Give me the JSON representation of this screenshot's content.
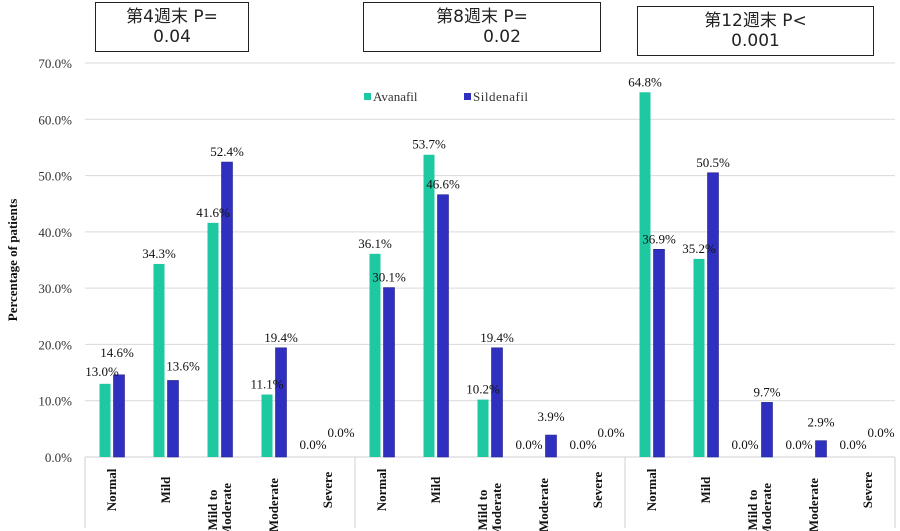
{
  "pvalue_boxes": [
    {
      "line1": "第4週末 P=",
      "line2": "0.04"
    },
    {
      "line1": "第8週末 P=",
      "line2": "0.02"
    },
    {
      "line1": "第12週末 P<",
      "line2": "0.001"
    }
  ],
  "chart_data": {
    "type": "bar",
    "title": "",
    "xlabel": "",
    "ylabel": "Percentage of patients",
    "ylim": [
      0,
      70
    ],
    "yticks": [
      0,
      10,
      20,
      30,
      40,
      50,
      60,
      70
    ],
    "ytick_labels": [
      "0.0%",
      "10.0%",
      "20.0%",
      "30.0%",
      "40.0%",
      "50.0%",
      "60.0%",
      "70.0%"
    ],
    "grid": true,
    "legend_position": "top-center",
    "colors": {
      "Avanafil": "#1ec8a0",
      "Sildenafil": "#3030c0"
    },
    "groups": [
      {
        "name": "Week 4",
        "categories": [
          "Normal",
          "Mild",
          "Mild to Moderate",
          "Moderate",
          "Severe"
        ],
        "series": [
          {
            "name": "Avanafil",
            "values": [
              13.0,
              34.3,
              41.6,
              11.1,
              0.0
            ],
            "labels": [
              "13.0%",
              "34.3%",
              "41.6%",
              "11.1%",
              "0.0%"
            ]
          },
          {
            "name": "Sildenafil",
            "values": [
              14.6,
              13.6,
              52.4,
              19.4,
              0.0
            ],
            "labels": [
              "14.6%",
              "13.6%",
              "52.4%",
              "19.4%",
              "0.0%"
            ]
          }
        ]
      },
      {
        "name": "Week 8",
        "categories": [
          "Normal",
          "Mild",
          "Mild to Moderate",
          "Moderate",
          "Severe"
        ],
        "series": [
          {
            "name": "Avanafil",
            "values": [
              36.1,
              53.7,
              10.2,
              0.0,
              0.0
            ],
            "labels": [
              "36.1%",
              "53.7%",
              "10.2%",
              "0.0%",
              "0.0%"
            ]
          },
          {
            "name": "Sildenafil",
            "values": [
              30.1,
              46.6,
              19.4,
              3.9,
              0.0
            ],
            "labels": [
              "30.1%",
              "46.6%",
              "19.4%",
              "3.9%",
              "0.0%"
            ]
          }
        ]
      },
      {
        "name": "Week 12",
        "categories": [
          "Normal",
          "Mild",
          "Mild to Moderate",
          "Moderate",
          "Severe"
        ],
        "series": [
          {
            "name": "Avanafil",
            "values": [
              64.8,
              35.2,
              0.0,
              0.0,
              0.0
            ],
            "labels": [
              "64.8%",
              "35.2%",
              "0.0%",
              "0.0%",
              "0.0%"
            ]
          },
          {
            "name": "Sildenafil",
            "values": [
              36.9,
              50.5,
              9.7,
              2.9,
              0.0
            ],
            "labels": [
              "36.9%",
              "50.5%",
              "9.7%",
              "2.9%",
              "0.0%"
            ]
          }
        ]
      }
    ],
    "legend": [
      "Avanafil",
      "Sildenafil"
    ]
  }
}
